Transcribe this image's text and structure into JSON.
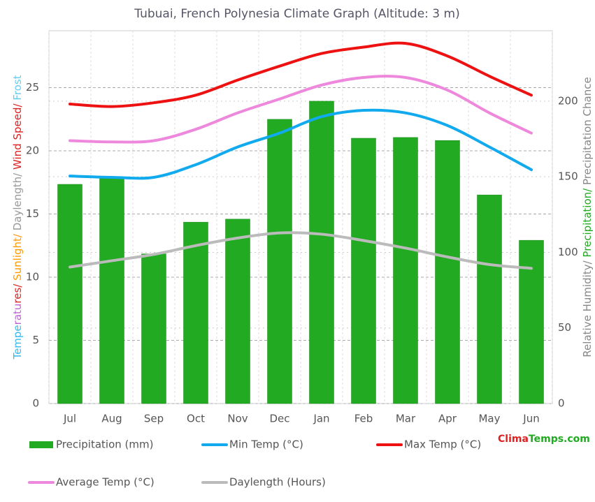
{
  "chart_data": {
    "type": "combo",
    "title": "Tubuai, French Polynesia Climate Graph (Altitude: 3 m)",
    "y_label_parts": [
      {
        "text": "Tempe",
        "color": "#33bbee"
      },
      {
        "text": "ratu",
        "color": "#bb66cc"
      },
      {
        "text": "res/ ",
        "color": "#dd2222"
      },
      {
        "text": "Sunlight/ ",
        "color": "#ff9900"
      },
      {
        "text": "Daylength/ ",
        "color": "#999999"
      },
      {
        "text": "Wind Speed/ ",
        "color": "#dd2222"
      },
      {
        "text": "Frost",
        "color": "#66ccee"
      }
    ],
    "y2_label_parts": [
      {
        "text": "Relative Humidity/ ",
        "color": "#888888"
      },
      {
        "text": "Precipitation/ ",
        "color": "#22aa22"
      },
      {
        "text": "Precipitation Chance",
        "color": "#888888"
      }
    ],
    "brand_parts": [
      {
        "text": "Clima",
        "color": "#dd2222"
      },
      {
        "text": "Temps.com",
        "color": "#22aa22"
      }
    ],
    "categories": [
      "Jul",
      "Aug",
      "Sep",
      "Oct",
      "Nov",
      "Dec",
      "Jan",
      "Feb",
      "Mar",
      "Apr",
      "May",
      "Jun"
    ],
    "series": [
      {
        "name": "Precipitation (mm)",
        "type": "bar",
        "axis": "y2",
        "color": "#22aa22",
        "values": [
          145,
          149,
          99,
          120,
          122,
          188,
          200,
          175.5,
          176,
          174,
          138,
          108
        ]
      },
      {
        "name": "Min Temp (°C)",
        "type": "line",
        "color": "#11aaee",
        "values": [
          18.0,
          17.9,
          17.9,
          18.9,
          20.3,
          21.4,
          22.7,
          23.2,
          23.0,
          22.0,
          20.3,
          18.5
        ]
      },
      {
        "name": "Max Temp (°C)",
        "type": "line",
        "color": "#ee1111",
        "values": [
          23.7,
          23.5,
          23.8,
          24.4,
          25.6,
          26.7,
          27.7,
          28.2,
          28.5,
          27.5,
          25.9,
          24.4
        ]
      },
      {
        "name": "Average Temp (°C)",
        "type": "line",
        "color": "#ee88dd",
        "values": [
          20.8,
          20.7,
          20.8,
          21.7,
          23.0,
          24.1,
          25.2,
          25.8,
          25.8,
          24.8,
          23.0,
          21.4
        ]
      },
      {
        "name": "Daylength (Hours)",
        "type": "line",
        "color": "#bbbbbb",
        "values": [
          10.8,
          11.3,
          11.8,
          12.5,
          13.1,
          13.5,
          13.4,
          12.9,
          12.3,
          11.6,
          11.0,
          10.7
        ]
      }
    ],
    "ylim": [
      0,
      29.5
    ],
    "yticks": [
      0,
      5,
      10,
      15,
      20,
      25
    ],
    "y2lim": [
      0,
      246.6
    ],
    "y2ticks": [
      0,
      50,
      100,
      150,
      200
    ],
    "grid": true
  }
}
